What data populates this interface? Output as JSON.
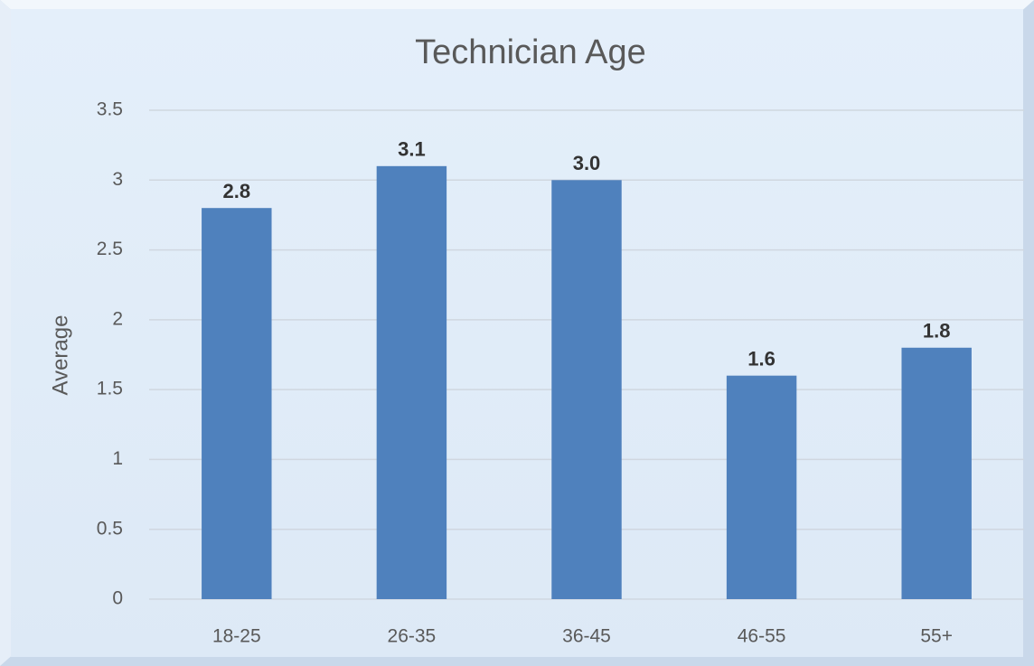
{
  "chart_data": {
    "type": "bar",
    "title": "Technician Age",
    "y_label": "Average",
    "categories": [
      "18-25",
      "26-35",
      "36-45",
      "46-55",
      "55+"
    ],
    "values": [
      2.8,
      3.1,
      3.0,
      1.6,
      1.8
    ],
    "value_labels": [
      "2.8",
      "3.1",
      "3.0",
      "1.6",
      "1.8"
    ],
    "color": "#4f81bd",
    "ylim": [
      0,
      3.5
    ],
    "yticks": [
      0,
      0.5,
      1,
      1.5,
      2,
      2.5,
      3,
      3.5
    ],
    "grid": true
  }
}
